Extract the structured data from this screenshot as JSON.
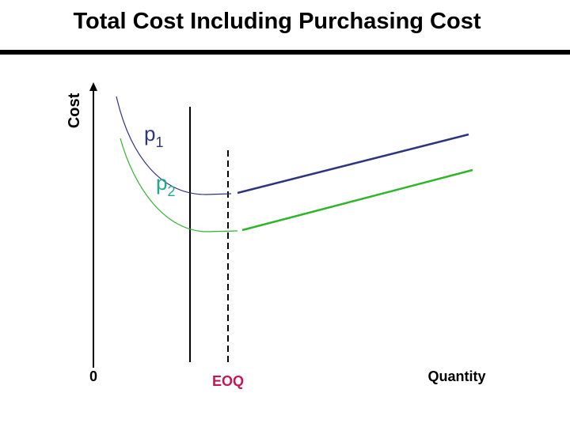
{
  "title": "Total Cost Including Purchasing Cost",
  "axis_labels": {
    "y": "Cost",
    "x": "Quantity",
    "origin": "0"
  },
  "markers": {
    "eoq": "EOQ"
  },
  "curve_labels": [
    {
      "base": "p",
      "sub": "1"
    },
    {
      "base": "p",
      "sub": "2"
    }
  ]
}
